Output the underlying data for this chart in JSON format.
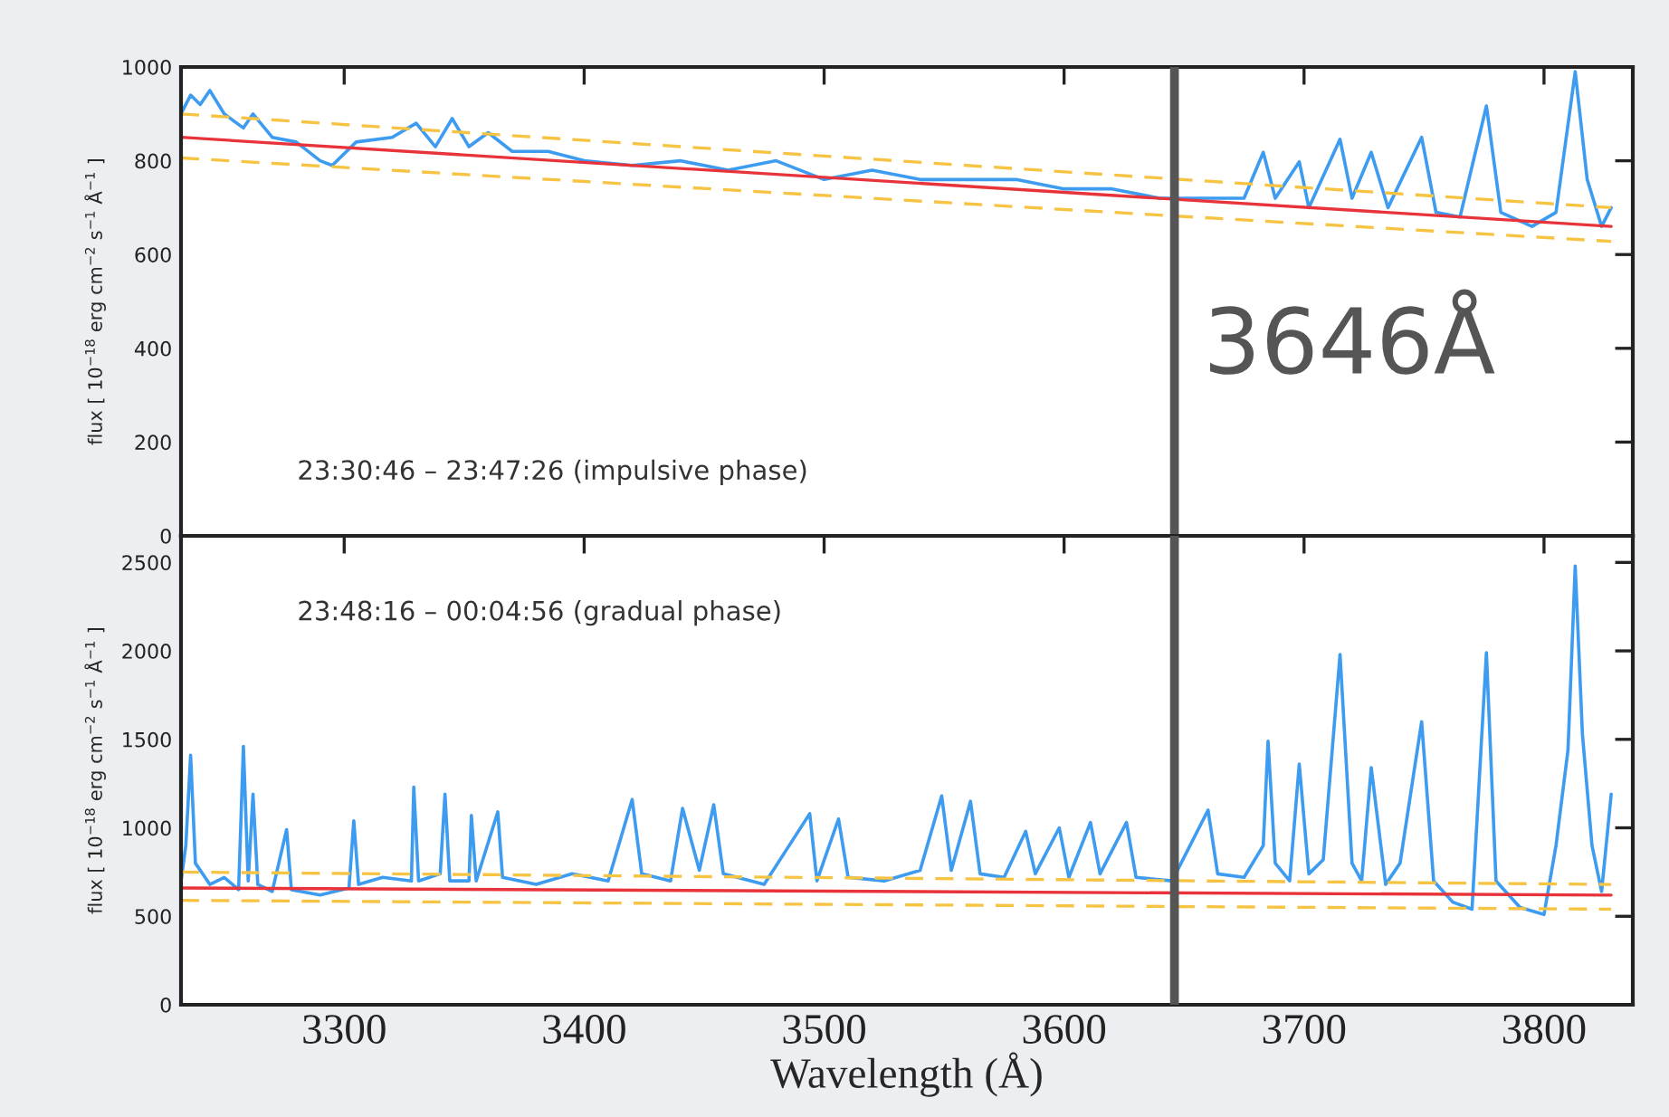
{
  "chart_data": [
    {
      "type": "line",
      "ylabel": "flux [ 10$^{−18}$ erg cm$^{−2}$ s$^{−1}$ Å$^{−1}$ ]",
      "xlim": [
        3232,
        3837
      ],
      "xticks": [
        3300,
        3400,
        3500,
        3600,
        3700,
        3800
      ],
      "ylim": [
        0,
        1000
      ],
      "yticks": [
        0,
        200,
        400,
        600,
        800,
        1000
      ],
      "tick_labels": "y",
      "annotations": [
        "23:30:46 – 23:47:26 (impulsive phase)"
      ],
      "ref_lines": [
        {
          "axis": "x",
          "value": 3646,
          "label": "3646Å",
          "color": "#555555"
        }
      ],
      "series": [
        {
          "color": "#3d9bf0",
          "line_style": "solid",
          "x": [
            3232,
            3236,
            3240,
            3244,
            3250,
            3258,
            3262,
            3270,
            3280,
            3290,
            3295,
            3305,
            3320,
            3330,
            3338,
            3345,
            3352,
            3360,
            3370,
            3385,
            3400,
            3420,
            3440,
            3460,
            3480,
            3500,
            3520,
            3540,
            3560,
            3580,
            3600,
            3620,
            3640,
            3660,
            3675,
            3683,
            3688,
            3698,
            3702,
            3715,
            3720,
            3728,
            3735,
            3749,
            3755,
            3765,
            3776,
            3782,
            3795,
            3805,
            3813,
            3818,
            3824,
            3828
          ],
          "values": [
            900,
            940,
            920,
            950,
            900,
            870,
            900,
            850,
            840,
            800,
            790,
            840,
            850,
            880,
            830,
            890,
            830,
            860,
            820,
            820,
            800,
            790,
            800,
            780,
            800,
            760,
            780,
            760,
            760,
            760,
            740,
            740,
            720,
            720,
            720,
            818,
            720,
            798,
            700,
            846,
            720,
            818,
            700,
            850,
            690,
            680,
            917,
            690,
            660,
            690,
            990,
            760,
            660,
            700
          ]
        },
        {
          "color": "#e8333a",
          "line_style": "solid",
          "x": [
            3232,
            3828
          ],
          "values": [
            850,
            660
          ]
        },
        {
          "color": "#f6c342",
          "line_style": "dashed",
          "x": [
            3232,
            3828
          ],
          "values": [
            900,
            700
          ]
        },
        {
          "color": "#f6c342",
          "line_style": "dashed",
          "x": [
            3232,
            3828
          ],
          "values": [
            806,
            628
          ]
        }
      ]
    },
    {
      "type": "line",
      "xlabel": "Wavelength (Å)",
      "ylabel": "flux [ 10$^{−18}$ erg cm$^{−2}$ s$^{−1}$ Å$^{−1}$ ]",
      "xlim": [
        3232,
        3837
      ],
      "xticks": [
        3300,
        3400,
        3500,
        3600,
        3700,
        3800
      ],
      "ylim": [
        0,
        2650
      ],
      "yticks": [
        0,
        500,
        1000,
        1500,
        2000,
        2500
      ],
      "annotations": [
        "23:48:16 – 00:04:56 (gradual phase)"
      ],
      "ref_lines": [
        {
          "axis": "x",
          "value": 3646,
          "color": "#555555"
        }
      ],
      "series": [
        {
          "color": "#3d9bf0",
          "line_style": "solid",
          "x": [
            3232,
            3234,
            3236,
            3238,
            3244,
            3250,
            3256,
            3258,
            3260,
            3262,
            3264,
            3270,
            3276,
            3278,
            3290,
            3302,
            3304,
            3306,
            3316,
            3328,
            3329,
            3331,
            3340,
            3342,
            3344,
            3352,
            3353,
            3355,
            3364,
            3366,
            3380,
            3395,
            3410,
            3420,
            3424,
            3436,
            3441,
            3448,
            3454,
            3458,
            3475,
            3494,
            3497,
            3506,
            3510,
            3525,
            3540,
            3549,
            3553,
            3561,
            3565,
            3575,
            3584,
            3588,
            3598,
            3602,
            3611,
            3615,
            3626,
            3630,
            3645,
            3660,
            3664,
            3675,
            3683,
            3685,
            3688,
            3694,
            3698,
            3702,
            3708,
            3715,
            3720,
            3724,
            3728,
            3734,
            3740,
            3749,
            3754,
            3762,
            3770,
            3776,
            3780,
            3790,
            3800,
            3805,
            3810,
            3813,
            3816,
            3820,
            3824,
            3828
          ],
          "values": [
            700,
            900,
            1410,
            800,
            680,
            720,
            650,
            1460,
            700,
            1190,
            680,
            640,
            990,
            650,
            620,
            660,
            1040,
            680,
            720,
            700,
            1230,
            700,
            740,
            1190,
            700,
            700,
            1070,
            700,
            1090,
            720,
            680,
            740,
            700,
            1160,
            740,
            700,
            1110,
            760,
            1130,
            740,
            680,
            1080,
            700,
            1050,
            720,
            700,
            760,
            1180,
            760,
            1150,
            740,
            720,
            980,
            740,
            1000,
            720,
            1030,
            740,
            1030,
            720,
            700,
            1100,
            740,
            720,
            900,
            1490,
            800,
            700,
            1360,
            740,
            820,
            1980,
            800,
            700,
            1340,
            680,
            800,
            1600,
            700,
            580,
            540,
            1990,
            700,
            550,
            510,
            900,
            1440,
            2480,
            1530,
            900,
            640,
            1190
          ]
        },
        {
          "color": "#e8333a",
          "line_style": "solid",
          "x": [
            3232,
            3828
          ],
          "values": [
            660,
            620
          ]
        },
        {
          "color": "#f6c342",
          "line_style": "dashed",
          "x": [
            3232,
            3828
          ],
          "values": [
            750,
            680
          ]
        },
        {
          "color": "#f6c342",
          "line_style": "dashed",
          "x": [
            3232,
            3828
          ],
          "values": [
            590,
            540
          ]
        }
      ]
    }
  ]
}
